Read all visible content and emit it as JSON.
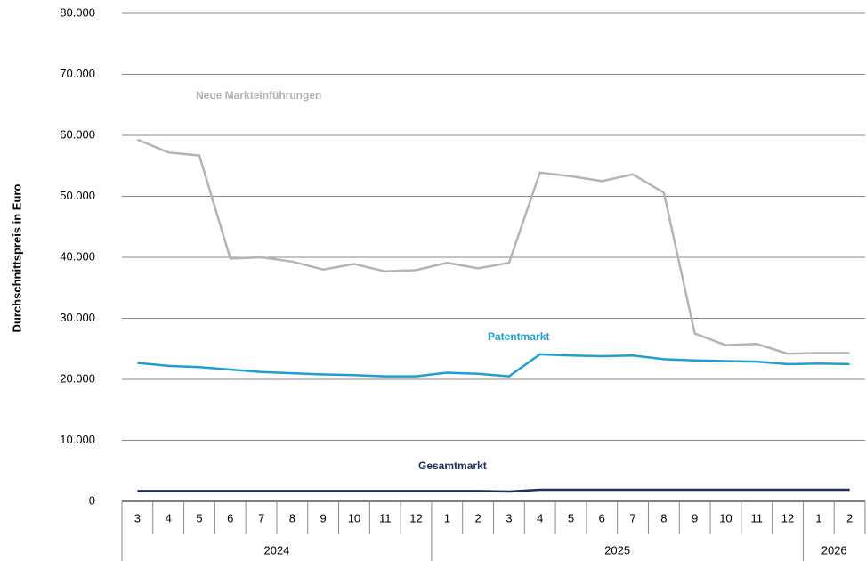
{
  "chart_data": {
    "type": "line",
    "y_axis_label": "Durchschnittspreis in Euro",
    "categories": [
      "3",
      "4",
      "5",
      "6",
      "7",
      "8",
      "9",
      "10",
      "11",
      "12",
      "1",
      "2",
      "3",
      "4",
      "5",
      "6",
      "7",
      "8",
      "9",
      "10",
      "11",
      "12",
      "1",
      "2"
    ],
    "year_groups": [
      {
        "label": "2024",
        "span": 10
      },
      {
        "label": "2025",
        "span": 12
      },
      {
        "label": "2026",
        "span": 2
      }
    ],
    "series": [
      {
        "name": "Neue Markteinführungen",
        "color": "#b4b4b4",
        "values": [
          59300,
          57200,
          56700,
          39800,
          40000,
          39300,
          38000,
          38900,
          37700,
          37900,
          39100,
          38200,
          39100,
          53900,
          53300,
          52500,
          53600,
          50600,
          27500,
          25600,
          25800,
          24200,
          24300,
          24300
        ]
      },
      {
        "name": "Patentmarkt",
        "color": "#1f9fd0",
        "values": [
          22700,
          22200,
          22000,
          21600,
          21200,
          21000,
          20800,
          20700,
          20500,
          20500,
          21100,
          20900,
          20500,
          24100,
          23900,
          23800,
          23900,
          23300,
          23100,
          23000,
          22900,
          22500,
          22600,
          22500
        ]
      },
      {
        "name": "Gesamtmarkt",
        "color": "#1b2f5e",
        "values": [
          1700,
          1700,
          1700,
          1700,
          1700,
          1700,
          1700,
          1700,
          1700,
          1700,
          1700,
          1700,
          1600,
          1900,
          1900,
          1900,
          1900,
          1900,
          1900,
          1900,
          1900,
          1900,
          1900,
          1900
        ]
      }
    ],
    "ylim": [
      0,
      80000
    ],
    "yticks": [
      0,
      {
        "value": 10000,
        "label": "10.000"
      },
      {
        "value": 20000,
        "label": "20.000"
      },
      {
        "value": 30000,
        "label": "30.000"
      },
      {
        "value": 40000,
        "label": "40.000"
      },
      {
        "value": 50000,
        "label": "50.000"
      },
      {
        "value": 60000,
        "label": "60.000"
      },
      {
        "value": 70000,
        "label": "70.000"
      },
      {
        "value": 80000,
        "label": "80.000"
      }
    ],
    "grid": true
  }
}
